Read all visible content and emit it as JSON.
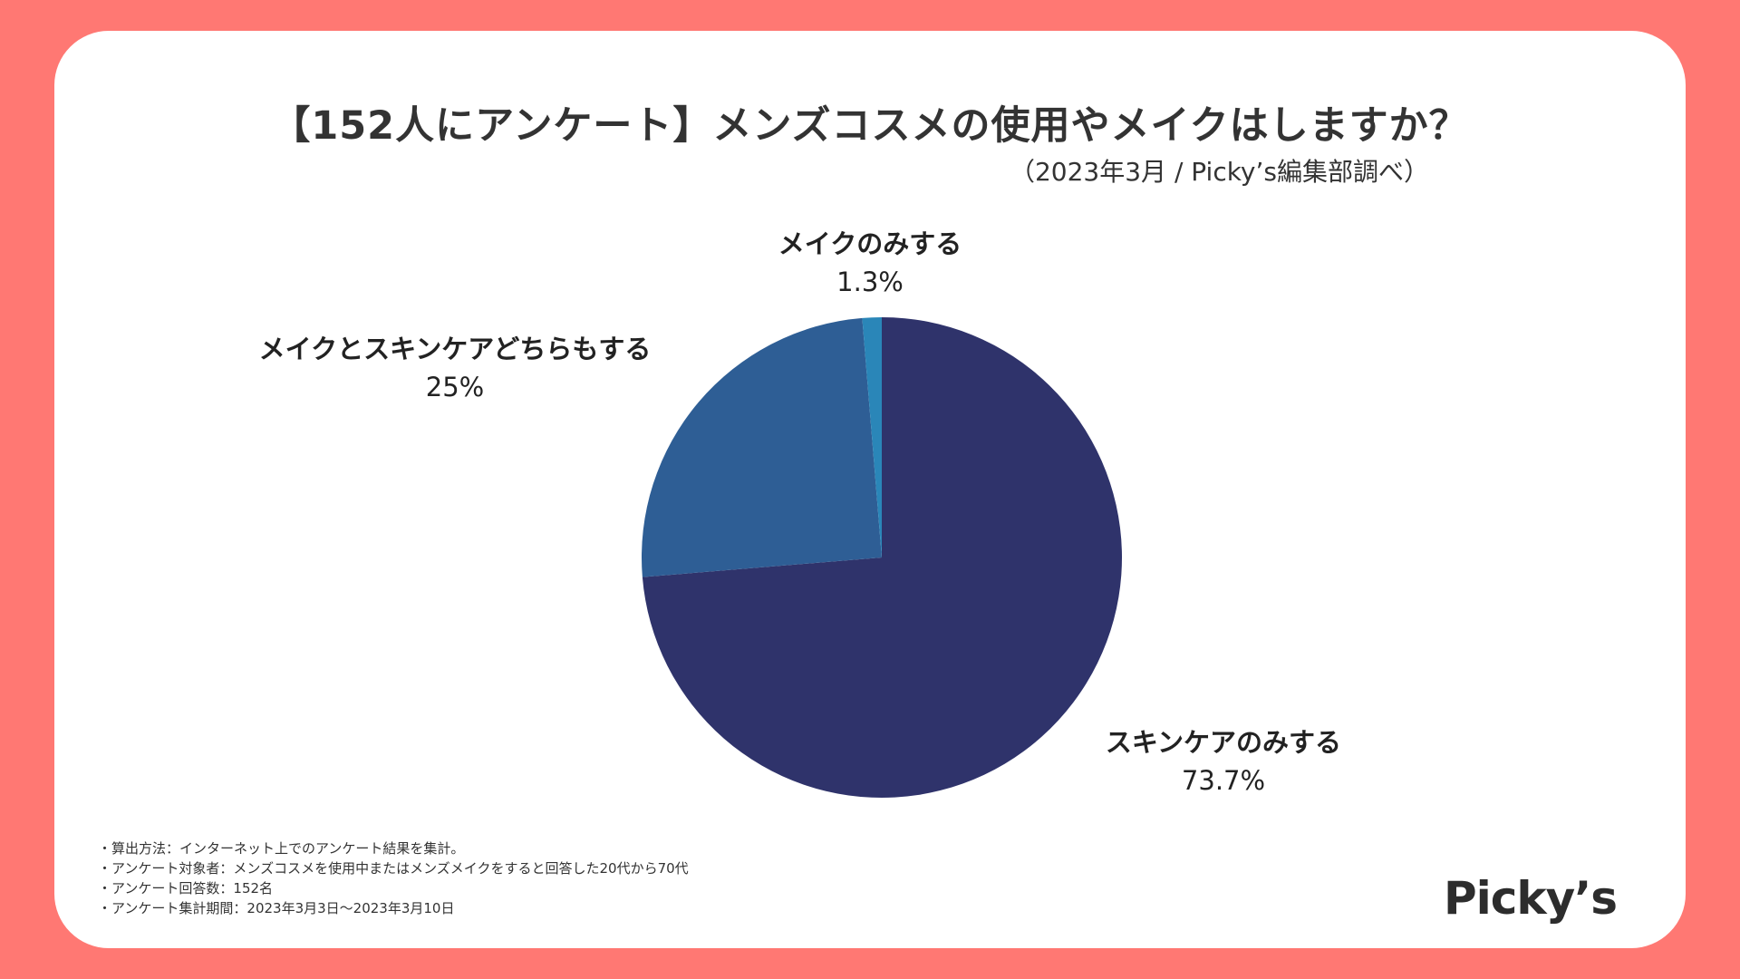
{
  "title": "【152人にアンケート】メンズコスメの使用やメイクはしますか？",
  "subtitle": "（2023年3月 / Picky’s編集部調べ）",
  "chart_data": {
    "type": "pie",
    "title": "【152人にアンケート】メンズコスメの使用やメイクはしますか？",
    "categories": [
      "スキンケアのみする",
      "メイクとスキンケアどちらもする",
      "メイクのみする"
    ],
    "values": [
      73.7,
      25,
      1.3
    ],
    "value_labels": [
      "73.7%",
      "25%",
      "1.3%"
    ],
    "colors": [
      "#2F336B",
      "#2E5E95",
      "#2A86B8"
    ],
    "start_angle_deg": 0,
    "direction": "clockwise"
  },
  "notes": [
    "・算出方法：インターネット上でのアンケート結果を集計。",
    "・アンケート対象者：メンズコスメを使用中またはメンズメイクをすると回答した20代から70代",
    "・アンケート回答数：152名",
    "・アンケート集計期間：2023年3月3日〜2023年3月10日"
  ],
  "logo": "Picky’s",
  "colors": {
    "background": "#FF7873",
    "card": "#FFFFFF",
    "text": "#333333"
  }
}
